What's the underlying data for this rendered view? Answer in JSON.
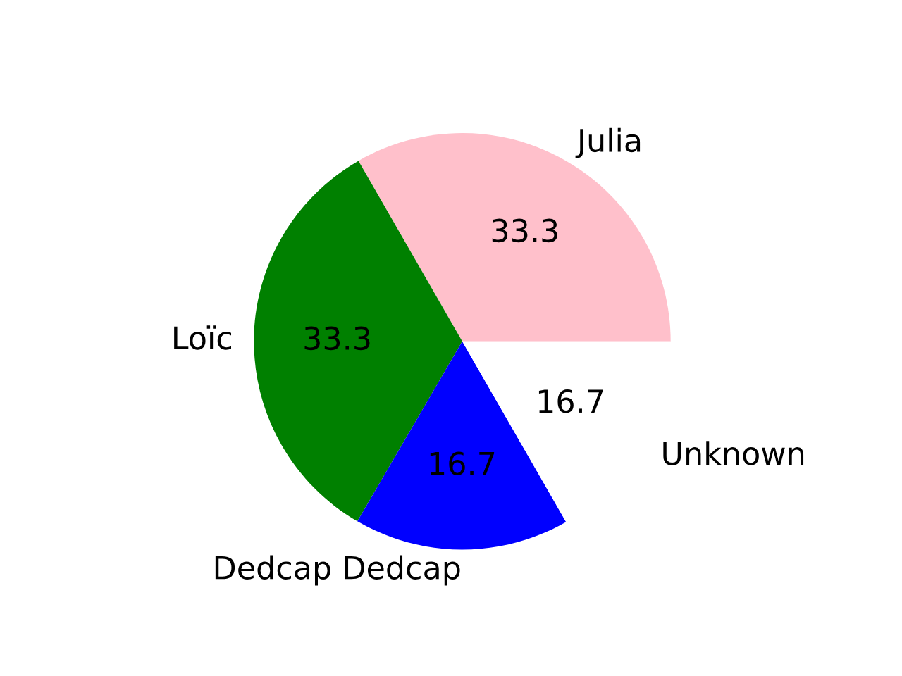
{
  "chart_data": {
    "type": "pie",
    "categories": [
      "Julia",
      "Loïc",
      "Dedcap Dedcap",
      "Unknown"
    ],
    "values": [
      33.3,
      33.3,
      16.7,
      16.7
    ],
    "colors": [
      "#ffc0cb",
      "#008000",
      "#0000ff",
      "#ffffff"
    ],
    "data_labels": true
  }
}
